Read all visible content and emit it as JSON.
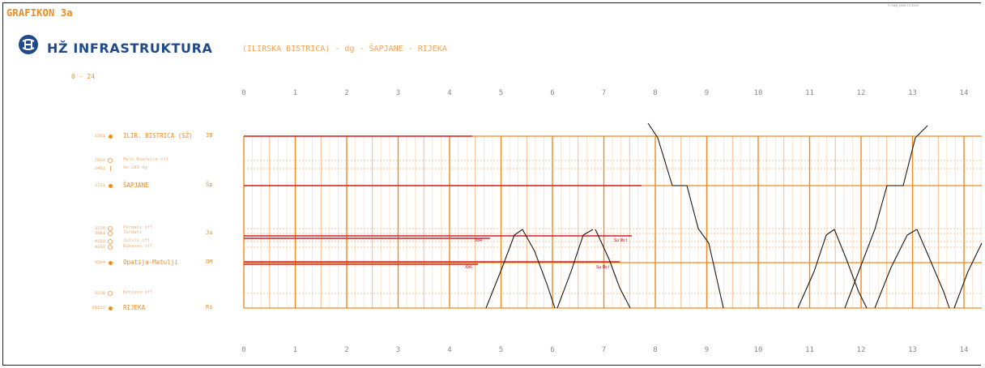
{
  "header": {
    "doc_title": "GRAFIKON 3a",
    "brand": "HŽ INFRASTRUKTURA",
    "route": "(ILIRSKA BISTRICA) - dg - ŠAPJANE - RIJEKA",
    "range": "0 - 24",
    "top_stamp": "© Ha6j 45/5f 23 5500"
  },
  "colors": {
    "orange": "#f08a1d",
    "light_orange": "#f7b37a",
    "pale_orange": "#fcd7b4",
    "red": "#d61f2a",
    "black": "#1a1a1a",
    "brand_blue": "#1f4a8a"
  },
  "stations": [
    {
      "km": "1501",
      "name": "ILIR. BISTRICA (SŽ)",
      "abbr": "IB",
      "type": "major"
    },
    {
      "km": "2022",
      "name": "Male Bukovice ofl",
      "abbr": "",
      "type": "minor"
    },
    {
      "km": "2461",
      "name": "km 283 dg",
      "abbr": "",
      "type": "tick"
    },
    {
      "km": "3721",
      "name": "ŠAPJANE",
      "abbr": "Šp",
      "type": "major"
    },
    {
      "km": "3776",
      "name": "Permani ofl",
      "abbr": "",
      "type": "minor"
    },
    {
      "km": "3881",
      "name": "Jurdani",
      "abbr": "Ju",
      "type": "minor"
    },
    {
      "km": "4152",
      "name": "Jušići ofl",
      "abbr": "",
      "type": "minor"
    },
    {
      "km": "4322",
      "name": "Rukavac ofl",
      "abbr": "",
      "type": "minor"
    },
    {
      "km": "4594",
      "name": "Opatija-Matulji",
      "abbr": "OM",
      "type": "major"
    },
    {
      "km": "5238",
      "name": "Krnjevo ofl",
      "abbr": "",
      "type": "minor"
    },
    {
      "km": "55512",
      "name": "RIJEKA",
      "abbr": "Ri",
      "type": "major"
    }
  ],
  "hours": [
    "0",
    "1",
    "2",
    "3",
    "4",
    "5",
    "6",
    "7",
    "8",
    "9",
    "10",
    "11",
    "12",
    "13",
    "14"
  ],
  "train_labels": [
    "Xb4",
    "Su 9b t",
    "Xb6",
    "Su 9b t"
  ]
}
